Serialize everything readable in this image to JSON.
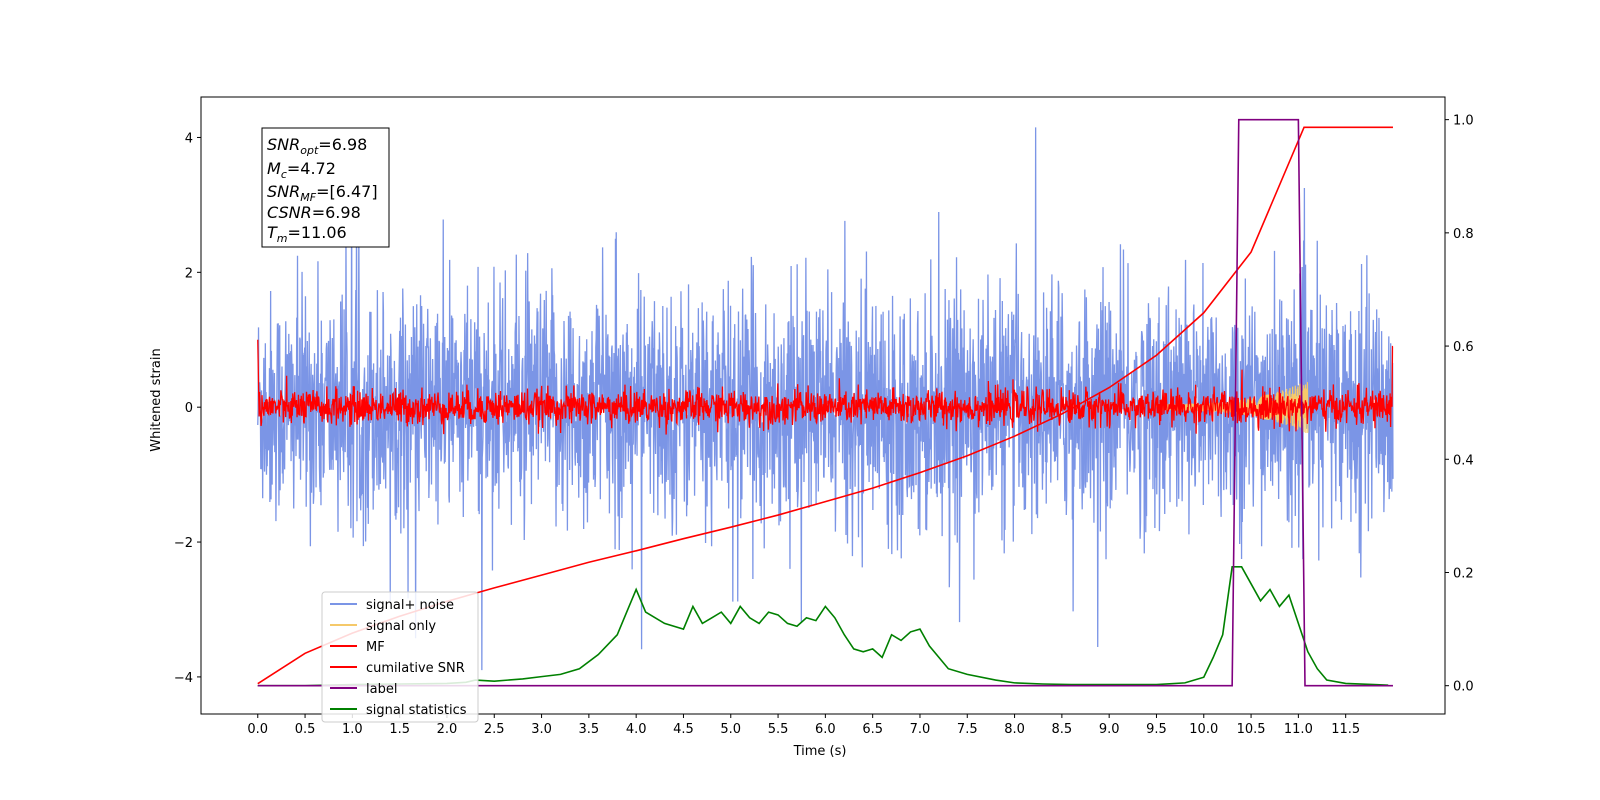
{
  "chart_data": {
    "type": "line",
    "xlabel": "Time (s)",
    "ylabel": "Whitened strain",
    "xlim": [
      -0.6,
      12.55
    ],
    "ylim": [
      -4.55,
      4.6
    ],
    "y2lim": [
      -0.05,
      1.04
    ],
    "x_ticks": [
      "0.0",
      "0.5",
      "1.0",
      "1.5",
      "2.0",
      "2.5",
      "3.0",
      "3.5",
      "4.0",
      "4.5",
      "5.0",
      "5.5",
      "6.0",
      "6.5",
      "7.0",
      "7.5",
      "8.0",
      "8.5",
      "9.0",
      "9.5",
      "10.0",
      "10.5",
      "11.0",
      "11.5"
    ],
    "y_ticks": [
      "−4",
      "−2",
      "0",
      "2",
      "4"
    ],
    "y2_ticks": [
      "0.0",
      "0.2",
      "0.4",
      "0.6",
      "0.8",
      "1.0"
    ],
    "grid": false,
    "legend_position": "lower-left",
    "annotations": {
      "snr_opt": "=6.98",
      "mc": "=4.72",
      "snr_mf": "=[6.47]",
      "csnr": "=6.98",
      "tm": "=11.06"
    },
    "series": [
      {
        "name": "signal+ noise",
        "color": "#7b95e6",
        "axis": "left",
        "amplitude_std": 0.85,
        "x_range": [
          0.0,
          12.0
        ]
      },
      {
        "name": "signal only",
        "color": "#f5c96a",
        "axis": "left",
        "x_range": [
          0.0,
          12.0
        ]
      },
      {
        "name": "MF",
        "color": "#ff0000",
        "axis": "left",
        "amplitude_std": 0.13,
        "x_range": [
          0.0,
          12.0
        ]
      },
      {
        "name": "cumilative SNR",
        "color": "#ff0000",
        "axis": "left",
        "x": [
          0.0,
          0.5,
          1.0,
          1.5,
          2.0,
          2.5,
          3.0,
          3.5,
          4.0,
          4.5,
          5.0,
          5.5,
          6.0,
          6.5,
          7.0,
          7.5,
          8.0,
          8.5,
          9.0,
          9.5,
          10.0,
          10.5,
          11.06,
          11.5,
          12.0
        ],
        "values": [
          -4.1,
          -3.65,
          -3.35,
          -3.1,
          -2.88,
          -2.68,
          -2.49,
          -2.3,
          -2.13,
          -1.95,
          -1.78,
          -1.6,
          -1.4,
          -1.2,
          -0.97,
          -0.72,
          -0.43,
          -0.1,
          0.29,
          0.77,
          1.4,
          2.3,
          4.15,
          4.15,
          4.15
        ]
      },
      {
        "name": "label",
        "color": "#800080",
        "axis": "right",
        "x": [
          0.0,
          10.3,
          10.37,
          11.0,
          11.07,
          12.0
        ],
        "values": [
          0.0,
          0.0,
          1.0,
          1.0,
          0.0,
          0.0
        ]
      },
      {
        "name": "signal statistics",
        "color": "#008000",
        "axis": "right",
        "x": [
          0.0,
          0.5,
          1.0,
          1.5,
          2.0,
          2.2,
          2.3,
          2.5,
          2.8,
          3.0,
          3.2,
          3.4,
          3.6,
          3.8,
          3.9,
          4.0,
          4.1,
          4.3,
          4.5,
          4.6,
          4.7,
          4.8,
          4.9,
          5.0,
          5.1,
          5.2,
          5.3,
          5.4,
          5.5,
          5.6,
          5.7,
          5.8,
          5.9,
          6.0,
          6.1,
          6.2,
          6.3,
          6.4,
          6.5,
          6.6,
          6.7,
          6.8,
          6.9,
          7.0,
          7.1,
          7.3,
          7.5,
          7.8,
          8.0,
          8.3,
          8.6,
          9.0,
          9.5,
          9.8,
          10.0,
          10.1,
          10.2,
          10.3,
          10.4,
          10.5,
          10.6,
          10.7,
          10.8,
          10.9,
          11.0,
          11.1,
          11.2,
          11.3,
          11.5,
          11.8,
          11.95
        ],
        "values": [
          0.0,
          0.0,
          0.002,
          0.003,
          0.004,
          0.006,
          0.01,
          0.008,
          0.012,
          0.016,
          0.02,
          0.03,
          0.055,
          0.09,
          0.13,
          0.17,
          0.13,
          0.11,
          0.1,
          0.14,
          0.11,
          0.12,
          0.13,
          0.11,
          0.14,
          0.12,
          0.11,
          0.13,
          0.125,
          0.11,
          0.105,
          0.12,
          0.115,
          0.14,
          0.12,
          0.09,
          0.065,
          0.06,
          0.065,
          0.05,
          0.09,
          0.08,
          0.095,
          0.1,
          0.07,
          0.03,
          0.02,
          0.01,
          0.005,
          0.003,
          0.002,
          0.002,
          0.002,
          0.005,
          0.015,
          0.05,
          0.09,
          0.21,
          0.21,
          0.18,
          0.15,
          0.17,
          0.14,
          0.16,
          0.11,
          0.06,
          0.03,
          0.01,
          0.004,
          0.002,
          0.001
        ]
      }
    ]
  }
}
